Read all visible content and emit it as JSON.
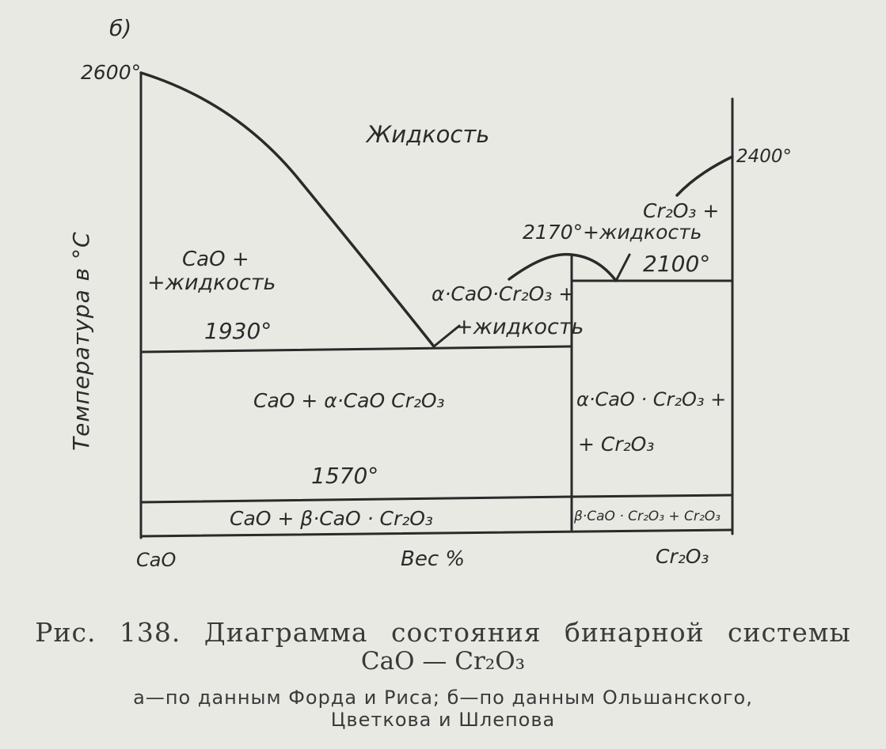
{
  "panel_label": "б)",
  "y_axis_label": "Температура в °С",
  "x_axis": {
    "left": "CaO",
    "center": "Вес %",
    "right": "Cr₂O₃"
  },
  "temperatures": {
    "t2600": "2600°",
    "t2400": "2400°",
    "t2170": "2170°",
    "t2100": "2100°",
    "t1930": "1930°",
    "t1570": "1570°"
  },
  "regions": {
    "liquid": "Жидкость",
    "cao_liquid_1": "CaO +",
    "cao_liquid_2": "+жидкость",
    "alpha_liquid_1": "α·CaO·Cr₂O₃ +",
    "alpha_liquid_2": "+жидкость",
    "cr2o3_liquid_1": "Cr₂O₃ +",
    "cr2o3_liquid_2": "+жидкость",
    "cao_alpha": "CaO + α·CaO  Cr₂O₃",
    "alpha_cr2o3_1": "α·CaO · Cr₂O₃ +",
    "alpha_cr2o3_2": "+ Cr₂O₃",
    "cao_beta": "CaO + β·CaO · Cr₂O₃",
    "beta_cr2o3": "β·CaO · Cr₂O₃ + Cr₂O₃"
  },
  "caption": {
    "line1": "Рис.  138.  Диаграмма  состояния  бинарной  системы",
    "line2": "CaO — Cr₂O₃",
    "line3": "а—по  данным  Форда и Риса;  б—по  данным  Ольшанского,",
    "line4": "Цветкова и Шлепова"
  },
  "colors": {
    "ink": "#2a2a2a",
    "paper": "#e9e9e4"
  }
}
